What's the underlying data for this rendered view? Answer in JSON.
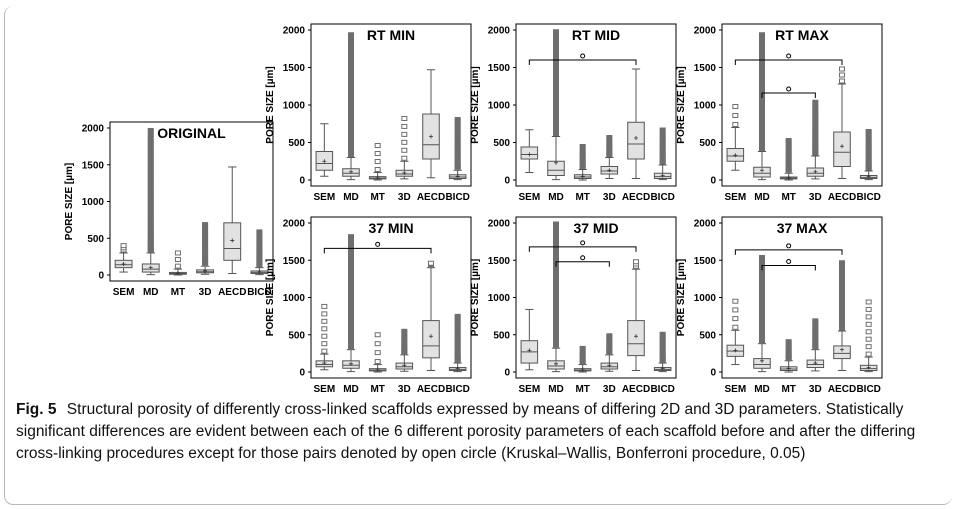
{
  "caption": {
    "label": "Fig. 5",
    "text": "Structural porosity of differently cross-linked scaffolds expressed by means of differing 2D and 3D parameters. Statistically significant differences are evident between each of the 6 different porosity parameters of each scaffold before and after the differing cross-linking procedures except for those pairs denoted by open circle (Kruskal–Wallis, Bonferroni procedure, 0.05)"
  },
  "colors": {
    "box_fill": "#e2e2e2",
    "box_stroke": "#555555",
    "outlier": "#6e6e6e",
    "axis": "#000000"
  },
  "chart_data": [
    {
      "type": "boxplot",
      "title": "ORIGINAL",
      "ylabel": "PORE SIZE [µm]",
      "ylim": [
        0,
        2000
      ],
      "yticks": [
        0,
        500,
        1000,
        1500,
        2000
      ],
      "categories": [
        "SEM",
        "MD",
        "MT",
        "3D",
        "AECD",
        "BICD"
      ],
      "boxes": [
        {
          "min": 40,
          "q1": 100,
          "median": 140,
          "q3": 200,
          "max": 300,
          "mean": 150,
          "outliers_max": 400,
          "dense_outliers": false
        },
        {
          "min": 5,
          "q1": 40,
          "median": 80,
          "q3": 150,
          "max": 300,
          "mean": 100,
          "outliers_max": 1980,
          "dense_outliers": true
        },
        {
          "min": 0,
          "q1": 10,
          "median": 20,
          "q3": 35,
          "max": 80,
          "mean": 25,
          "outliers_max": 300,
          "dense_outliers": false
        },
        {
          "min": 10,
          "q1": 30,
          "median": 45,
          "q3": 70,
          "max": 120,
          "mean": 55,
          "outliers_max": 700,
          "dense_outliers": true
        },
        {
          "min": 20,
          "q1": 200,
          "median": 360,
          "q3": 710,
          "max": 1470,
          "mean": 470,
          "outliers_max": null,
          "dense_outliers": false
        },
        {
          "min": 5,
          "q1": 20,
          "median": 35,
          "q3": 55,
          "max": 100,
          "mean": 40,
          "outliers_max": 600,
          "dense_outliers": true
        }
      ],
      "significance": []
    },
    {
      "type": "boxplot",
      "title": "RT MIN",
      "ylabel": "PORE SIZE [µm]",
      "ylim": [
        0,
        2000
      ],
      "yticks": [
        0,
        500,
        1000,
        1500,
        2000
      ],
      "categories": [
        "SEM",
        "MD",
        "MT",
        "3D",
        "AECD",
        "BICD"
      ],
      "boxes": [
        {
          "min": 50,
          "q1": 130,
          "median": 220,
          "q3": 380,
          "max": 750,
          "mean": 250,
          "outliers_max": null,
          "dense_outliers": false
        },
        {
          "min": 5,
          "q1": 50,
          "median": 90,
          "q3": 150,
          "max": 300,
          "mean": 110,
          "outliers_max": 1950,
          "dense_outliers": true
        },
        {
          "min": 0,
          "q1": 15,
          "median": 25,
          "q3": 45,
          "max": 100,
          "mean": 30,
          "outliers_max": 460,
          "dense_outliers": false
        },
        {
          "min": 15,
          "q1": 50,
          "median": 80,
          "q3": 130,
          "max": 250,
          "mean": 95,
          "outliers_max": 820,
          "dense_outliers": false
        },
        {
          "min": 30,
          "q1": 280,
          "median": 470,
          "q3": 880,
          "max": 1470,
          "mean": 580,
          "outliers_max": null,
          "dense_outliers": false
        },
        {
          "min": 5,
          "q1": 20,
          "median": 40,
          "q3": 70,
          "max": 130,
          "mean": 50,
          "outliers_max": 820,
          "dense_outliers": true
        }
      ],
      "significance": []
    },
    {
      "type": "boxplot",
      "title": "RT MID",
      "ylabel": "PORE SIZE [µm]",
      "ylim": [
        0,
        2000
      ],
      "yticks": [
        0,
        500,
        1000,
        1500,
        2000
      ],
      "categories": [
        "SEM",
        "MD",
        "MT",
        "3D",
        "AECD",
        "BICD"
      ],
      "boxes": [
        {
          "min": 100,
          "q1": 280,
          "median": 340,
          "q3": 440,
          "max": 670,
          "mean": 340,
          "outliers_max": null,
          "dense_outliers": false
        },
        {
          "min": 5,
          "q1": 60,
          "median": 130,
          "q3": 250,
          "max": 580,
          "mean": 230,
          "outliers_max": 1990,
          "dense_outliers": true
        },
        {
          "min": 0,
          "q1": 20,
          "median": 40,
          "q3": 70,
          "max": 140,
          "mean": 50,
          "outliers_max": 460,
          "dense_outliers": true
        },
        {
          "min": 20,
          "q1": 80,
          "median": 120,
          "q3": 180,
          "max": 300,
          "mean": 130,
          "outliers_max": 580,
          "dense_outliers": true
        },
        {
          "min": 20,
          "q1": 280,
          "median": 480,
          "q3": 770,
          "max": 1480,
          "mean": 560,
          "outliers_max": null,
          "dense_outliers": false
        },
        {
          "min": 5,
          "q1": 20,
          "median": 45,
          "q3": 90,
          "max": 200,
          "mean": 60,
          "outliers_max": 680,
          "dense_outliers": true
        }
      ],
      "significance": [
        {
          "from": "SEM",
          "to": "AECD",
          "y": 1600
        }
      ]
    },
    {
      "type": "boxplot",
      "title": "RT MAX",
      "ylabel": "PORE SIZE [µm]",
      "ylim": [
        0,
        2000
      ],
      "yticks": [
        0,
        500,
        1000,
        1500,
        2000
      ],
      "categories": [
        "SEM",
        "MD",
        "MT",
        "3D",
        "AECD",
        "BICD"
      ],
      "boxes": [
        {
          "min": 130,
          "q1": 250,
          "median": 320,
          "q3": 420,
          "max": 700,
          "mean": 330,
          "outliers_max": 980,
          "dense_outliers": false
        },
        {
          "min": 5,
          "q1": 40,
          "median": 90,
          "q3": 170,
          "max": 380,
          "mean": 130,
          "outliers_max": 1950,
          "dense_outliers": true
        },
        {
          "min": 0,
          "q1": 15,
          "median": 25,
          "q3": 40,
          "max": 90,
          "mean": 30,
          "outliers_max": 540,
          "dense_outliers": true
        },
        {
          "min": 15,
          "q1": 50,
          "median": 90,
          "q3": 160,
          "max": 320,
          "mean": 110,
          "outliers_max": 1050,
          "dense_outliers": true
        },
        {
          "min": 20,
          "q1": 180,
          "median": 370,
          "q3": 640,
          "max": 1280,
          "mean": 450,
          "outliers_max": 1480,
          "dense_outliers": false
        },
        {
          "min": 5,
          "q1": 20,
          "median": 35,
          "q3": 60,
          "max": 120,
          "mean": 45,
          "outliers_max": 660,
          "dense_outliers": true
        }
      ],
      "significance": [
        {
          "from": "SEM",
          "to": "AECD",
          "y": 1600
        },
        {
          "from": "MD",
          "to": "3D",
          "y": 1160
        }
      ]
    },
    {
      "type": "boxplot",
      "title": "37 MIN",
      "ylabel": "PORE SIZE [µm]",
      "ylim": [
        0,
        2000
      ],
      "yticks": [
        0,
        500,
        1000,
        1500,
        2000
      ],
      "categories": [
        "SEM",
        "MD",
        "MT",
        "3D",
        "AECD",
        "BICD"
      ],
      "boxes": [
        {
          "min": 30,
          "q1": 70,
          "median": 100,
          "q3": 150,
          "max": 240,
          "mean": 120,
          "outliers_max": 880,
          "dense_outliers": false
        },
        {
          "min": 5,
          "q1": 50,
          "median": 90,
          "q3": 150,
          "max": 300,
          "mean": 110,
          "outliers_max": 1830,
          "dense_outliers": true
        },
        {
          "min": 0,
          "q1": 15,
          "median": 25,
          "q3": 45,
          "max": 100,
          "mean": 30,
          "outliers_max": 500,
          "dense_outliers": false
        },
        {
          "min": 10,
          "q1": 40,
          "median": 70,
          "q3": 120,
          "max": 230,
          "mean": 90,
          "outliers_max": 560,
          "dense_outliers": true
        },
        {
          "min": 20,
          "q1": 190,
          "median": 350,
          "q3": 690,
          "max": 1400,
          "mean": 480,
          "outliers_max": 1460,
          "dense_outliers": false
        },
        {
          "min": 5,
          "q1": 20,
          "median": 35,
          "q3": 60,
          "max": 120,
          "mean": 45,
          "outliers_max": 760,
          "dense_outliers": true
        }
      ],
      "significance": [
        {
          "from": "SEM",
          "to": "AECD",
          "y": 1660
        }
      ]
    },
    {
      "type": "boxplot",
      "title": "37 MID",
      "ylabel": "PORE SIZE [µm]",
      "ylim": [
        0,
        2000
      ],
      "yticks": [
        0,
        500,
        1000,
        1500,
        2000
      ],
      "categories": [
        "SEM",
        "MD",
        "MT",
        "3D",
        "AECD",
        "BICD"
      ],
      "boxes": [
        {
          "min": 30,
          "q1": 120,
          "median": 270,
          "q3": 420,
          "max": 840,
          "mean": 290,
          "outliers_max": null,
          "dense_outliers": false
        },
        {
          "min": 5,
          "q1": 40,
          "median": 80,
          "q3": 150,
          "max": 320,
          "mean": 110,
          "outliers_max": 2000,
          "dense_outliers": true
        },
        {
          "min": 0,
          "q1": 15,
          "median": 25,
          "q3": 45,
          "max": 100,
          "mean": 30,
          "outliers_max": 330,
          "dense_outliers": true
        },
        {
          "min": 10,
          "q1": 40,
          "median": 70,
          "q3": 120,
          "max": 230,
          "mean": 90,
          "outliers_max": 500,
          "dense_outliers": true
        },
        {
          "min": 20,
          "q1": 220,
          "median": 380,
          "q3": 690,
          "max": 1380,
          "mean": 480,
          "outliers_max": 1480,
          "dense_outliers": false
        },
        {
          "min": 5,
          "q1": 20,
          "median": 35,
          "q3": 60,
          "max": 120,
          "mean": 45,
          "outliers_max": 520,
          "dense_outliers": true
        }
      ],
      "significance": [
        {
          "from": "SEM",
          "to": "AECD",
          "y": 1680
        },
        {
          "from": "MD",
          "to": "3D",
          "y": 1480
        }
      ]
    },
    {
      "type": "boxplot",
      "title": "37 MAX",
      "ylabel": "PORE SIZE [µm]",
      "ylim": [
        0,
        2000
      ],
      "yticks": [
        0,
        500,
        1000,
        1500,
        2000
      ],
      "categories": [
        "SEM",
        "MD",
        "MT",
        "3D",
        "AECD",
        "BICD"
      ],
      "boxes": [
        {
          "min": 100,
          "q1": 210,
          "median": 280,
          "q3": 360,
          "max": 560,
          "mean": 290,
          "outliers_max": 950,
          "dense_outliers": false
        },
        {
          "min": 5,
          "q1": 50,
          "median": 100,
          "q3": 180,
          "max": 380,
          "mean": 150,
          "outliers_max": 1550,
          "dense_outliers": true
        },
        {
          "min": 0,
          "q1": 20,
          "median": 40,
          "q3": 70,
          "max": 150,
          "mean": 50,
          "outliers_max": 420,
          "dense_outliers": true
        },
        {
          "min": 15,
          "q1": 60,
          "median": 100,
          "q3": 160,
          "max": 300,
          "mean": 120,
          "outliers_max": 700,
          "dense_outliers": true
        },
        {
          "min": 20,
          "q1": 180,
          "median": 250,
          "q3": 350,
          "max": 550,
          "mean": 300,
          "outliers_max": 1480,
          "dense_outliers": true
        },
        {
          "min": 5,
          "q1": 20,
          "median": 45,
          "q3": 90,
          "max": 200,
          "mean": 60,
          "outliers_max": 940,
          "dense_outliers": false
        }
      ],
      "significance": [
        {
          "from": "SEM",
          "to": "AECD",
          "y": 1640
        },
        {
          "from": "MD",
          "to": "3D",
          "y": 1430
        }
      ]
    }
  ]
}
